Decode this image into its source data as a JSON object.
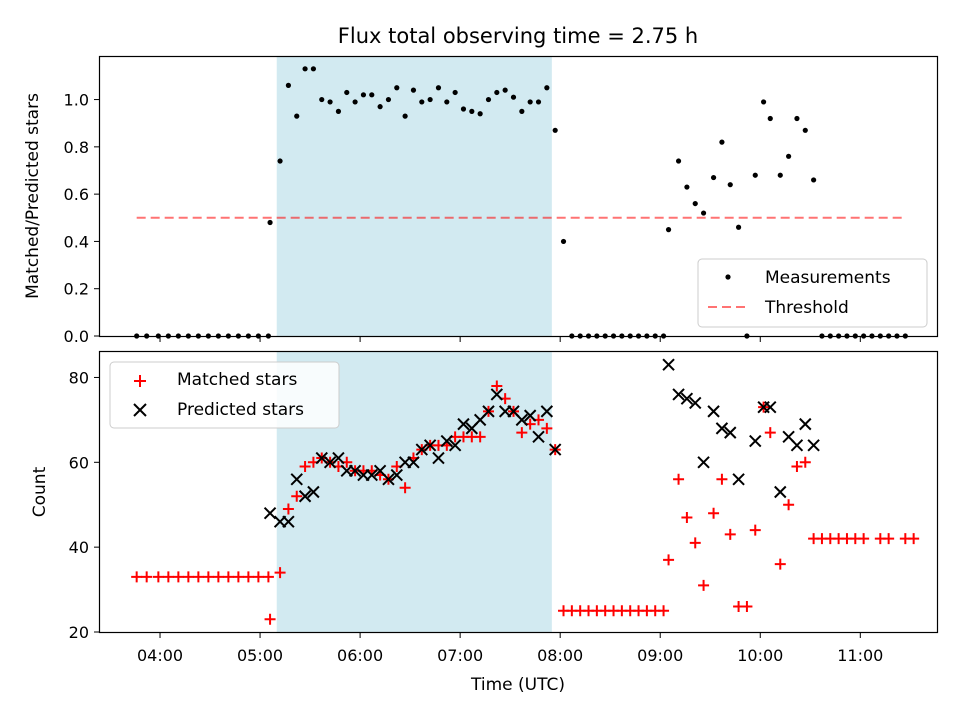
{
  "title": "Flux total observing time = 2.75 h",
  "colors": {
    "band": "#add8e6",
    "threshold": "#ff0000",
    "matched": "#ff0000",
    "predicted": "#000000",
    "measure": "#000000"
  },
  "chart_data": [
    {
      "type": "scatter",
      "ylabel": "Matched/Predicted stars",
      "ylim": [
        0,
        1.18
      ],
      "xlim": [
        "03:24",
        "11:46"
      ],
      "yticks": [
        "0.0",
        "0.2",
        "0.4",
        "0.6",
        "0.8",
        "1.0"
      ],
      "shaded_interval": [
        "05:10",
        "07:55"
      ],
      "threshold": {
        "y": 0.5,
        "x_range": [
          "03:46",
          "11:26"
        ]
      },
      "legend": {
        "position": "lower-right",
        "entries": [
          "Measurements",
          "Threshold"
        ]
      },
      "series": [
        {
          "name": "Measurements",
          "points": [
            [
              "03:46",
              0
            ],
            [
              "03:52",
              0
            ],
            [
              "03:59",
              0
            ],
            [
              "04:05",
              0
            ],
            [
              "04:11",
              0
            ],
            [
              "04:17",
              0
            ],
            [
              "04:23",
              0
            ],
            [
              "04:29",
              0
            ],
            [
              "04:35",
              0
            ],
            [
              "04:41",
              0
            ],
            [
              "04:47",
              0
            ],
            [
              "04:53",
              0
            ],
            [
              "04:59",
              0
            ],
            [
              "05:05",
              0
            ],
            [
              "05:06",
              0.48
            ],
            [
              "05:12",
              0.74
            ],
            [
              "05:17",
              1.06
            ],
            [
              "05:22",
              0.93
            ],
            [
              "05:27",
              1.13
            ],
            [
              "05:32",
              1.13
            ],
            [
              "05:37",
              1.0
            ],
            [
              "05:42",
              0.99
            ],
            [
              "05:47",
              0.95
            ],
            [
              "05:52",
              1.03
            ],
            [
              "05:57",
              0.99
            ],
            [
              "06:02",
              1.02
            ],
            [
              "06:07",
              1.02
            ],
            [
              "06:12",
              0.97
            ],
            [
              "06:17",
              1.0
            ],
            [
              "06:22",
              1.05
            ],
            [
              "06:27",
              0.93
            ],
            [
              "06:32",
              1.04
            ],
            [
              "06:37",
              0.99
            ],
            [
              "06:42",
              1.0
            ],
            [
              "06:47",
              1.05
            ],
            [
              "06:52",
              0.99
            ],
            [
              "06:57",
              1.03
            ],
            [
              "07:02",
              0.96
            ],
            [
              "07:07",
              0.95
            ],
            [
              "07:12",
              0.94
            ],
            [
              "07:17",
              1.0
            ],
            [
              "07:22",
              1.03
            ],
            [
              "07:27",
              1.04
            ],
            [
              "07:32",
              1.01
            ],
            [
              "07:37",
              0.95
            ],
            [
              "07:42",
              0.99
            ],
            [
              "07:47",
              0.99
            ],
            [
              "07:52",
              1.05
            ],
            [
              "07:57",
              0.87
            ],
            [
              "08:02",
              0.4
            ],
            [
              "08:07",
              0
            ],
            [
              "08:12",
              0
            ],
            [
              "08:17",
              0
            ],
            [
              "08:22",
              0
            ],
            [
              "08:27",
              0
            ],
            [
              "08:32",
              0
            ],
            [
              "08:37",
              0
            ],
            [
              "08:42",
              0
            ],
            [
              "08:47",
              0
            ],
            [
              "08:52",
              0
            ],
            [
              "08:57",
              0
            ],
            [
              "09:02",
              0
            ],
            [
              "09:05",
              0.45
            ],
            [
              "09:11",
              0.74
            ],
            [
              "09:16",
              0.63
            ],
            [
              "09:21",
              0.56
            ],
            [
              "09:26",
              0.52
            ],
            [
              "09:32",
              0.67
            ],
            [
              "09:37",
              0.82
            ],
            [
              "09:42",
              0.64
            ],
            [
              "09:47",
              0.46
            ],
            [
              "09:52",
              0
            ],
            [
              "09:57",
              0.68
            ],
            [
              "10:02",
              0.99
            ],
            [
              "10:06",
              0.92
            ],
            [
              "10:12",
              0.68
            ],
            [
              "10:17",
              0.76
            ],
            [
              "10:22",
              0.92
            ],
            [
              "10:27",
              0.87
            ],
            [
              "10:32",
              0.66
            ],
            [
              "10:37",
              0
            ],
            [
              "10:42",
              0
            ],
            [
              "10:47",
              0
            ],
            [
              "10:52",
              0
            ],
            [
              "10:57",
              0
            ],
            [
              "11:02",
              0
            ],
            [
              "11:07",
              0
            ],
            [
              "11:12",
              0
            ],
            [
              "11:17",
              0
            ],
            [
              "11:22",
              0
            ],
            [
              "11:27",
              0
            ]
          ]
        }
      ]
    },
    {
      "type": "scatter",
      "xlabel": "Time (UTC)",
      "ylabel": "Count",
      "ylim": [
        20,
        86
      ],
      "xlim": [
        "03:24",
        "11:46"
      ],
      "xticks": [
        "04:00",
        "05:00",
        "06:00",
        "07:00",
        "08:00",
        "09:00",
        "10:00",
        "11:00"
      ],
      "yticks": [
        "20",
        "40",
        "60",
        "80"
      ],
      "shaded_interval": [
        "05:10",
        "07:55"
      ],
      "legend": {
        "position": "upper-left",
        "entries": [
          "Matched stars",
          "Predicted stars"
        ]
      },
      "series": [
        {
          "name": "Matched stars",
          "marker": "plus",
          "points": [
            [
              "03:46",
              33
            ],
            [
              "03:52",
              33
            ],
            [
              "03:59",
              33
            ],
            [
              "04:05",
              33
            ],
            [
              "04:11",
              33
            ],
            [
              "04:17",
              33
            ],
            [
              "04:23",
              33
            ],
            [
              "04:29",
              33
            ],
            [
              "04:35",
              33
            ],
            [
              "04:41",
              33
            ],
            [
              "04:47",
              33
            ],
            [
              "04:53",
              33
            ],
            [
              "04:59",
              33
            ],
            [
              "05:05",
              33
            ],
            [
              "05:06",
              23
            ],
            [
              "05:12",
              34
            ],
            [
              "05:17",
              49
            ],
            [
              "05:22",
              52
            ],
            [
              "05:27",
              59
            ],
            [
              "05:32",
              60
            ],
            [
              "05:37",
              61
            ],
            [
              "05:42",
              60
            ],
            [
              "05:47",
              59
            ],
            [
              "05:52",
              60
            ],
            [
              "05:57",
              58
            ],
            [
              "06:02",
              58
            ],
            [
              "06:07",
              58
            ],
            [
              "06:12",
              57
            ],
            [
              "06:17",
              56
            ],
            [
              "06:22",
              59
            ],
            [
              "06:27",
              54
            ],
            [
              "06:32",
              61
            ],
            [
              "06:37",
              63
            ],
            [
              "06:42",
              64
            ],
            [
              "06:47",
              64
            ],
            [
              "06:52",
              64
            ],
            [
              "06:57",
              66
            ],
            [
              "07:02",
              66
            ],
            [
              "07:07",
              66
            ],
            [
              "07:12",
              66
            ],
            [
              "07:17",
              72
            ],
            [
              "07:22",
              78
            ],
            [
              "07:27",
              75
            ],
            [
              "07:32",
              72
            ],
            [
              "07:37",
              67
            ],
            [
              "07:42",
              69
            ],
            [
              "07:47",
              70
            ],
            [
              "07:52",
              68
            ],
            [
              "07:57",
              63
            ],
            [
              "08:02",
              25
            ],
            [
              "08:07",
              25
            ],
            [
              "08:12",
              25
            ],
            [
              "08:17",
              25
            ],
            [
              "08:22",
              25
            ],
            [
              "08:27",
              25
            ],
            [
              "08:32",
              25
            ],
            [
              "08:37",
              25
            ],
            [
              "08:42",
              25
            ],
            [
              "08:47",
              25
            ],
            [
              "08:52",
              25
            ],
            [
              "08:57",
              25
            ],
            [
              "09:02",
              25
            ],
            [
              "09:05",
              37
            ],
            [
              "09:11",
              56
            ],
            [
              "09:16",
              47
            ],
            [
              "09:21",
              41
            ],
            [
              "09:26",
              31
            ],
            [
              "09:32",
              48
            ],
            [
              "09:37",
              56
            ],
            [
              "09:42",
              43
            ],
            [
              "09:47",
              26
            ],
            [
              "09:52",
              26
            ],
            [
              "09:57",
              44
            ],
            [
              "10:02",
              73
            ],
            [
              "10:06",
              67
            ],
            [
              "10:12",
              36
            ],
            [
              "10:17",
              50
            ],
            [
              "10:22",
              59
            ],
            [
              "10:27",
              60
            ],
            [
              "10:32",
              42
            ],
            [
              "10:37",
              42
            ],
            [
              "10:42",
              42
            ],
            [
              "10:47",
              42
            ],
            [
              "10:52",
              42
            ],
            [
              "10:57",
              42
            ],
            [
              "11:02",
              42
            ],
            [
              "11:12",
              42
            ],
            [
              "11:17",
              42
            ],
            [
              "11:27",
              42
            ],
            [
              "11:32",
              42
            ]
          ]
        },
        {
          "name": "Predicted stars",
          "marker": "x",
          "points": [
            [
              "05:06",
              48
            ],
            [
              "05:12",
              46
            ],
            [
              "05:17",
              46
            ],
            [
              "05:22",
              56
            ],
            [
              "05:27",
              52
            ],
            [
              "05:32",
              53
            ],
            [
              "05:37",
              61
            ],
            [
              "05:42",
              60
            ],
            [
              "05:47",
              61
            ],
            [
              "05:52",
              58
            ],
            [
              "05:57",
              58
            ],
            [
              "06:02",
              57
            ],
            [
              "06:07",
              57
            ],
            [
              "06:12",
              58
            ],
            [
              "06:17",
              56
            ],
            [
              "06:22",
              57
            ],
            [
              "06:27",
              60
            ],
            [
              "06:32",
              60
            ],
            [
              "06:37",
              63
            ],
            [
              "06:42",
              64
            ],
            [
              "06:47",
              61
            ],
            [
              "06:52",
              65
            ],
            [
              "06:57",
              64
            ],
            [
              "07:02",
              69
            ],
            [
              "07:07",
              68
            ],
            [
              "07:12",
              70
            ],
            [
              "07:17",
              72
            ],
            [
              "07:22",
              76
            ],
            [
              "07:27",
              72
            ],
            [
              "07:32",
              72
            ],
            [
              "07:37",
              70
            ],
            [
              "07:42",
              71
            ],
            [
              "07:47",
              66
            ],
            [
              "07:52",
              72
            ],
            [
              "07:57",
              63
            ],
            [
              "09:05",
              83
            ],
            [
              "09:11",
              76
            ],
            [
              "09:16",
              75
            ],
            [
              "09:21",
              74
            ],
            [
              "09:26",
              60
            ],
            [
              "09:32",
              72
            ],
            [
              "09:37",
              68
            ],
            [
              "09:42",
              67
            ],
            [
              "09:47",
              56
            ],
            [
              "09:57",
              65
            ],
            [
              "10:02",
              73
            ],
            [
              "10:06",
              73
            ],
            [
              "10:12",
              53
            ],
            [
              "10:17",
              66
            ],
            [
              "10:22",
              64
            ],
            [
              "10:27",
              69
            ],
            [
              "10:32",
              64
            ]
          ]
        }
      ]
    }
  ]
}
